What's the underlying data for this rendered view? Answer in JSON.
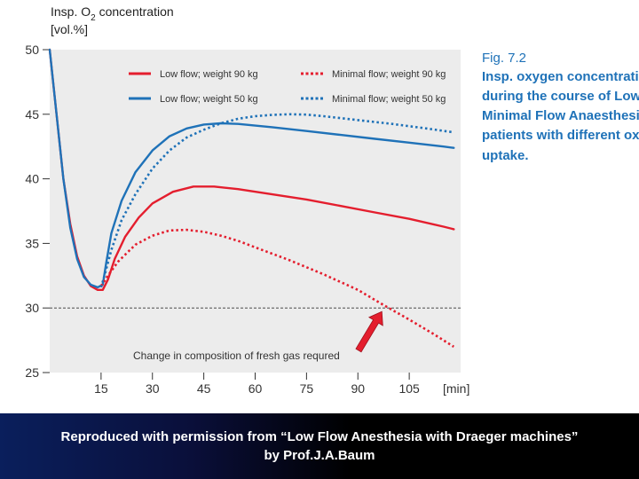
{
  "chart_data": {
    "type": "line",
    "ytitle_lines": [
      "Insp. O",
      "2",
      " concentration",
      "[vol.%]"
    ],
    "x_unit_label": "[min]",
    "ylim": [
      25,
      50
    ],
    "xlim": [
      0,
      120
    ],
    "yticks": [
      25,
      30,
      35,
      40,
      45,
      50
    ],
    "ytick_labels": [
      "25",
      "30",
      "35",
      "40",
      "45",
      "50"
    ],
    "xticks": [
      15,
      30,
      45,
      60,
      75,
      90,
      105
    ],
    "xtick_labels": [
      "15",
      "30",
      "45",
      "60",
      "75",
      "90",
      "105"
    ],
    "threshold": 30,
    "annotation": "Change in composition of fresh gas requred",
    "arrow_target": {
      "x": 97,
      "y": 30
    },
    "series": [
      {
        "name": "Low flow; weight 90 kg",
        "color": "#e41e2e",
        "dashed": false,
        "points": [
          [
            0,
            50
          ],
          [
            2,
            45
          ],
          [
            4,
            40
          ],
          [
            6,
            36.5
          ],
          [
            8,
            34
          ],
          [
            10,
            32.5
          ],
          [
            12,
            31.7
          ],
          [
            14,
            31.4
          ],
          [
            15.5,
            31.4
          ],
          [
            17,
            32.2
          ],
          [
            19,
            33.8
          ],
          [
            22,
            35.5
          ],
          [
            26,
            37
          ],
          [
            30,
            38.1
          ],
          [
            36,
            39
          ],
          [
            42,
            39.4
          ],
          [
            48,
            39.4
          ],
          [
            55,
            39.2
          ],
          [
            65,
            38.8
          ],
          [
            75,
            38.4
          ],
          [
            85,
            37.9
          ],
          [
            95,
            37.4
          ],
          [
            105,
            36.9
          ],
          [
            115,
            36.3
          ],
          [
            118,
            36.1
          ]
        ]
      },
      {
        "name": "Low flow; weight 50 kg",
        "color": "#1f72b8",
        "dashed": false,
        "points": [
          [
            0,
            50
          ],
          [
            2,
            45
          ],
          [
            4,
            40
          ],
          [
            6,
            36.2
          ],
          [
            8,
            33.8
          ],
          [
            10,
            32.4
          ],
          [
            12,
            31.8
          ],
          [
            14,
            31.6
          ],
          [
            15.5,
            31.8
          ],
          [
            16.5,
            33.5
          ],
          [
            18,
            35.8
          ],
          [
            21,
            38.3
          ],
          [
            25,
            40.5
          ],
          [
            30,
            42.2
          ],
          [
            35,
            43.3
          ],
          [
            40,
            43.9
          ],
          [
            45,
            44.2
          ],
          [
            50,
            44.3
          ],
          [
            55,
            44.25
          ],
          [
            65,
            44
          ],
          [
            75,
            43.7
          ],
          [
            85,
            43.4
          ],
          [
            95,
            43.1
          ],
          [
            105,
            42.8
          ],
          [
            115,
            42.5
          ],
          [
            118,
            42.4
          ]
        ]
      },
      {
        "name": "Minimal flow; weight 90 kg",
        "color": "#e41e2e",
        "dashed": true,
        "points": [
          [
            15,
            31.7
          ],
          [
            17,
            32.5
          ],
          [
            20,
            33.6
          ],
          [
            25,
            34.9
          ],
          [
            30,
            35.6
          ],
          [
            35,
            36
          ],
          [
            40,
            36.05
          ],
          [
            45,
            35.9
          ],
          [
            50,
            35.6
          ],
          [
            55,
            35.2
          ],
          [
            60,
            34.7
          ],
          [
            70,
            33.7
          ],
          [
            80,
            32.6
          ],
          [
            90,
            31.4
          ],
          [
            97,
            30.3
          ],
          [
            105,
            29.1
          ],
          [
            112,
            28
          ],
          [
            118,
            27
          ]
        ]
      },
      {
        "name": "Minimal flow; weight 50 kg",
        "color": "#1f72b8",
        "dashed": true,
        "points": [
          [
            15,
            31.6
          ],
          [
            16,
            32.5
          ],
          [
            18,
            34.5
          ],
          [
            21,
            36.8
          ],
          [
            25,
            38.8
          ],
          [
            30,
            40.8
          ],
          [
            35,
            42.2
          ],
          [
            40,
            43.2
          ],
          [
            45,
            43.8
          ],
          [
            50,
            44.3
          ],
          [
            55,
            44.65
          ],
          [
            60,
            44.85
          ],
          [
            65,
            44.95
          ],
          [
            70,
            45
          ],
          [
            75,
            44.97
          ],
          [
            80,
            44.85
          ],
          [
            90,
            44.55
          ],
          [
            100,
            44.25
          ],
          [
            110,
            43.9
          ],
          [
            118,
            43.6
          ]
        ]
      }
    ]
  },
  "caption": {
    "fig_number": "Fig. 7.2",
    "lines": [
      "Insp. oxygen concentration",
      "during the course of Low and",
      "Minimal Flow Anaesthesia in",
      "patients with different oxygen",
      "uptake."
    ]
  },
  "footer": {
    "line1": "Reproduced with permission from “Low Flow Anesthesia with Draeger machines”",
    "line2": "by Prof.J.A.Baum"
  }
}
